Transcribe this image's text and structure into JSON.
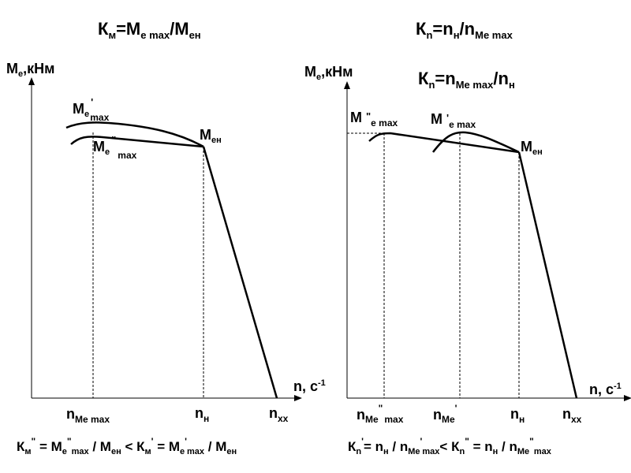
{
  "left": {
    "title": {
      "k": "К",
      "k_sub": "м",
      "eq1": "=М",
      "e_sub": "e max",
      "slash": "/М",
      "en_sub": "ен"
    },
    "y_axis": {
      "m": "М",
      "e": "e",
      "unit": ",кНм"
    },
    "x_axis": {
      "n": "n, с",
      "exp": "-1"
    },
    "labels": {
      "me1": {
        "m": "М",
        "sub": "e",
        "prime": "'",
        "max": "max"
      },
      "me2": {
        "m": "М",
        "sub": "e",
        "prime": "\"",
        "max": "max"
      },
      "men": {
        "m": "М",
        "sub": "ен"
      }
    },
    "ticks": {
      "nme": {
        "n": "n",
        "sub": "Me max"
      },
      "nn": {
        "n": "n",
        "sub": "н"
      },
      "nxx": {
        "n": "n",
        "sub": "xx"
      }
    },
    "formula": {
      "k": "К",
      "k_sub": "м",
      "pp": "\"",
      "eq": " = М",
      "e": "e",
      "max": "max",
      "div_m": " / М",
      "en": "ен",
      "lt": " < К",
      "k_sub2": "м",
      "p": "'",
      "eq2": " = М",
      "e2": "e",
      "p2": "'",
      "max2": "max",
      "div_m2": " / М",
      "en2": "ен"
    }
  },
  "right": {
    "title1": {
      "k": "К",
      "k_sub": "n",
      "eq": "=n",
      "n_sub": "н",
      "slash": "/n",
      "me_sub": "Me max"
    },
    "title2": {
      "k": "К",
      "k_sub": "n",
      "eq": "=n",
      "me_sub": "Me max",
      "slash": "/n",
      "n_sub": "н"
    },
    "y_axis": {
      "m": "М",
      "e": "e",
      "unit": ",кНм"
    },
    "x_axis": {
      "n": "n, с",
      "exp": "-1"
    },
    "labels": {
      "me2": {
        "m": "М ",
        "prime": "\"",
        "sub": "e max"
      },
      "me1": {
        "m": "М ",
        "prime": "'",
        "sub": "e max"
      },
      "men": {
        "m": "М",
        "sub": "ен"
      }
    },
    "ticks": {
      "nme2": {
        "n": "n",
        "sub": "Me",
        "prime": "\"",
        "max": "max"
      },
      "nme1": {
        "n": "n",
        "sub": "Me",
        "prime": "'"
      },
      "nn": {
        "n": "n",
        "sub": "н"
      },
      "nxx": {
        "n": "n",
        "sub": "xx"
      }
    },
    "formula": {
      "k": "К",
      "k_sub": "n",
      "p": "'",
      "eq": "= n",
      "n_sub": "н",
      "div": " / n",
      "me": "Me",
      "p2": "'",
      "max": "max",
      "lt": "< К",
      "k_sub2": "n",
      "pp": "\"",
      "eq2": " = n",
      "n_sub2": "н",
      "div2": " / n",
      "me2": "Me",
      "pp2": "\"",
      "max2": "max"
    }
  }
}
